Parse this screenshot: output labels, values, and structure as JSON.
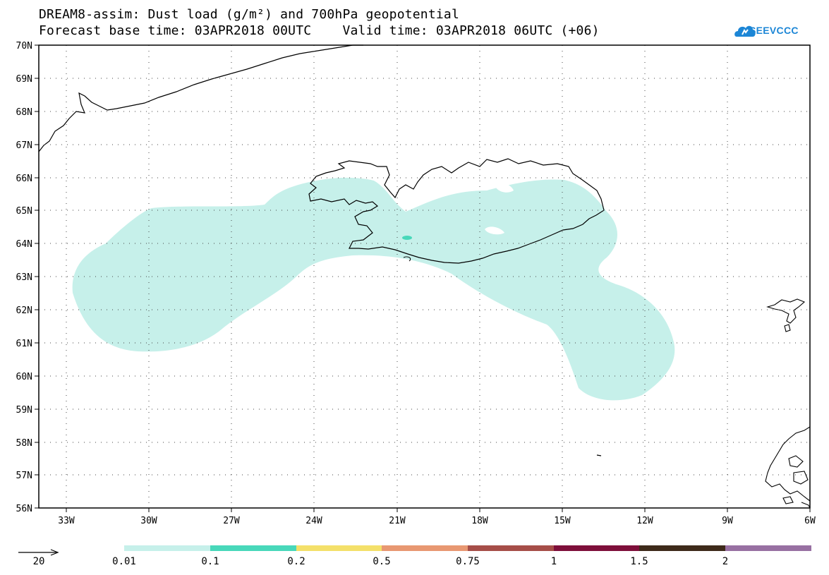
{
  "header": {
    "title_line1": "DREAM8-assim: Dust load (g/m²) and 700hPa geopotential",
    "title_line2": "Forecast base time: 03APR2018 00UTC    Valid time: 03APR2018 06UTC (+06)"
  },
  "logo": {
    "text": "SEEVCCC",
    "color": "#1c86d6"
  },
  "map": {
    "lon_ticks": [
      "33W",
      "30W",
      "27W",
      "24W",
      "21W",
      "18W",
      "15W",
      "12W",
      "9W",
      "6W"
    ],
    "lat_ticks": [
      "70N",
      "69N",
      "68N",
      "67N",
      "66N",
      "65N",
      "64N",
      "63N",
      "62N",
      "61N",
      "60N",
      "59N",
      "58N",
      "57N",
      "56N"
    ],
    "dust_fill_color": "#c6f0ea",
    "dust_hotspot_color": "#48d8ba"
  },
  "legend": {
    "vector_label": "20",
    "labels": [
      "0.01",
      "0.1",
      "0.2",
      "0.5",
      "0.75",
      "1",
      "1.5",
      "2"
    ],
    "colors": [
      "#c6f0ea",
      "#48d8ba",
      "#f4e06a",
      "#e89872",
      "#a64e48",
      "#7e0f3a",
      "#3e2a1a",
      "#9870a2"
    ]
  }
}
